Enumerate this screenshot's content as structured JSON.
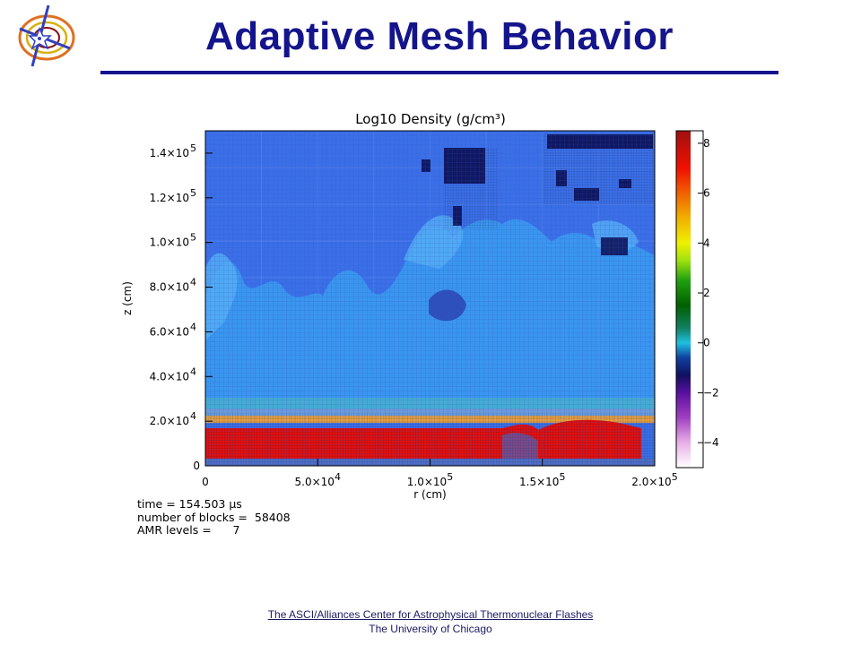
{
  "slide": {
    "title": "Adaptive Mesh Behavior"
  },
  "chart_data": {
    "type": "heatmap",
    "title": "Log10 Density (g/cm³)",
    "xlabel": "r (cm)",
    "ylabel": "z (cm)",
    "xlim": [
      0,
      200000
    ],
    "ylim": [
      0,
      150000
    ],
    "x_ticks": [
      {
        "value": 0,
        "mantissa": "0",
        "exp": ""
      },
      {
        "value": 50000,
        "mantissa": "5.0×10",
        "exp": "4"
      },
      {
        "value": 100000,
        "mantissa": "1.0×10",
        "exp": "5"
      },
      {
        "value": 150000,
        "mantissa": "1.5×10",
        "exp": "5"
      },
      {
        "value": 200000,
        "mantissa": "2.0×10",
        "exp": "5"
      }
    ],
    "y_ticks": [
      {
        "value": 0,
        "mantissa": "0",
        "exp": ""
      },
      {
        "value": 20000,
        "mantissa": "2.0×10",
        "exp": "4"
      },
      {
        "value": 40000,
        "mantissa": "4.0×10",
        "exp": "4"
      },
      {
        "value": 60000,
        "mantissa": "6.0×10",
        "exp": "4"
      },
      {
        "value": 80000,
        "mantissa": "8.0×10",
        "exp": "4"
      },
      {
        "value": 100000,
        "mantissa": "1.0×10",
        "exp": "5"
      },
      {
        "value": 120000,
        "mantissa": "1.2×10",
        "exp": "5"
      },
      {
        "value": 140000,
        "mantissa": "1.4×10",
        "exp": "5"
      }
    ],
    "colorbar": {
      "range": [
        -5,
        8.5
      ],
      "ticks": [
        {
          "value": 8,
          "label": "8"
        },
        {
          "value": 6,
          "label": "6"
        },
        {
          "value": 4,
          "label": "4"
        },
        {
          "value": 2,
          "label": "2"
        },
        {
          "value": 0,
          "label": "0"
        },
        {
          "value": -2,
          "label": "−2"
        },
        {
          "value": -4,
          "label": "−4"
        }
      ]
    },
    "background_density_log10": 0,
    "high_density_layer": {
      "z_range": [
        0,
        20000
      ],
      "log10_density": 7.5
    },
    "colors": {
      "background_blue": "#3b6fe8",
      "plume_blue": "#3b9cf0",
      "dense_red": "#e01010",
      "void_navy": "#0a0a50"
    }
  },
  "stats": {
    "time_label": "time = ",
    "time_value": "154.503",
    "time_unit": " μs",
    "blocks_label": "number of blocks =",
    "blocks_value": "58408",
    "levels_label": "AMR levels =",
    "levels_value": "7"
  },
  "footer": {
    "link": "The ASCI/Alliances Center for Astrophysical Thermonuclear Flashes",
    "institution": "The University of Chicago"
  }
}
